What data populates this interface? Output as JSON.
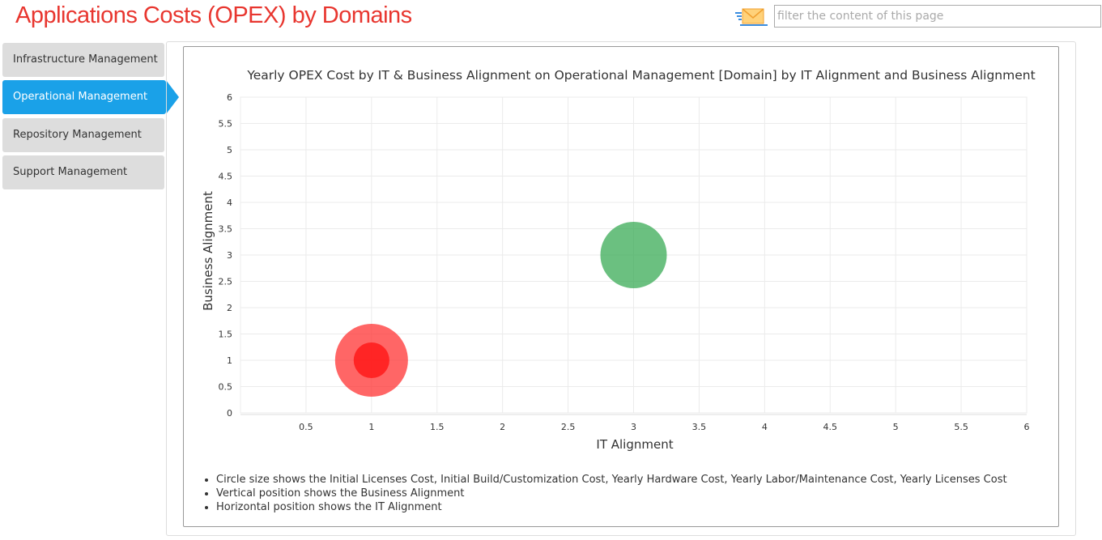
{
  "header": {
    "title": "Applications Costs (OPEX) by Domains",
    "filter_placeholder": "filter the content of this page",
    "mail_icon": "envelope-icon"
  },
  "sidebar": {
    "items": [
      {
        "label": "Infrastructure Management",
        "active": false
      },
      {
        "label": "Operational Management",
        "active": true
      },
      {
        "label": "Repository Management",
        "active": false
      },
      {
        "label": "Support Management",
        "active": false
      }
    ]
  },
  "chart_data": {
    "type": "bubble",
    "title": "Yearly OPEX Cost by IT & Business Alignment on Operational Management [Domain] by IT Alignment and Business Alignment",
    "xlabel": "IT Alignment",
    "ylabel": "Business Alignment",
    "xlim": [
      0,
      6
    ],
    "ylim": [
      0,
      6
    ],
    "xticks": [
      "0.5",
      "1",
      "1.5",
      "2",
      "2.5",
      "3",
      "3.5",
      "4",
      "4.5",
      "5",
      "5.5",
      "6"
    ],
    "yticks": [
      "0",
      "0.5",
      "1",
      "1.5",
      "2",
      "2.5",
      "3",
      "3.5",
      "4",
      "4.5",
      "5",
      "5.5",
      "6"
    ],
    "grid": true,
    "points": [
      {
        "x": 1,
        "y": 1,
        "size": 1.0,
        "color": "#ff3333"
      },
      {
        "x": 1,
        "y": 1,
        "size": 0.24,
        "color": "#ff1a1a"
      },
      {
        "x": 3,
        "y": 3,
        "size": 0.83,
        "color": "#3aab55"
      }
    ]
  },
  "notes": [
    "Circle size shows the Initial Licenses Cost, Initial Build/Customization Cost, Yearly Hardware Cost, Yearly Labor/Maintenance Cost, Yearly Licenses Cost",
    "Vertical position shows the Business Alignment",
    "Horizontal position shows the IT Alignment"
  ]
}
